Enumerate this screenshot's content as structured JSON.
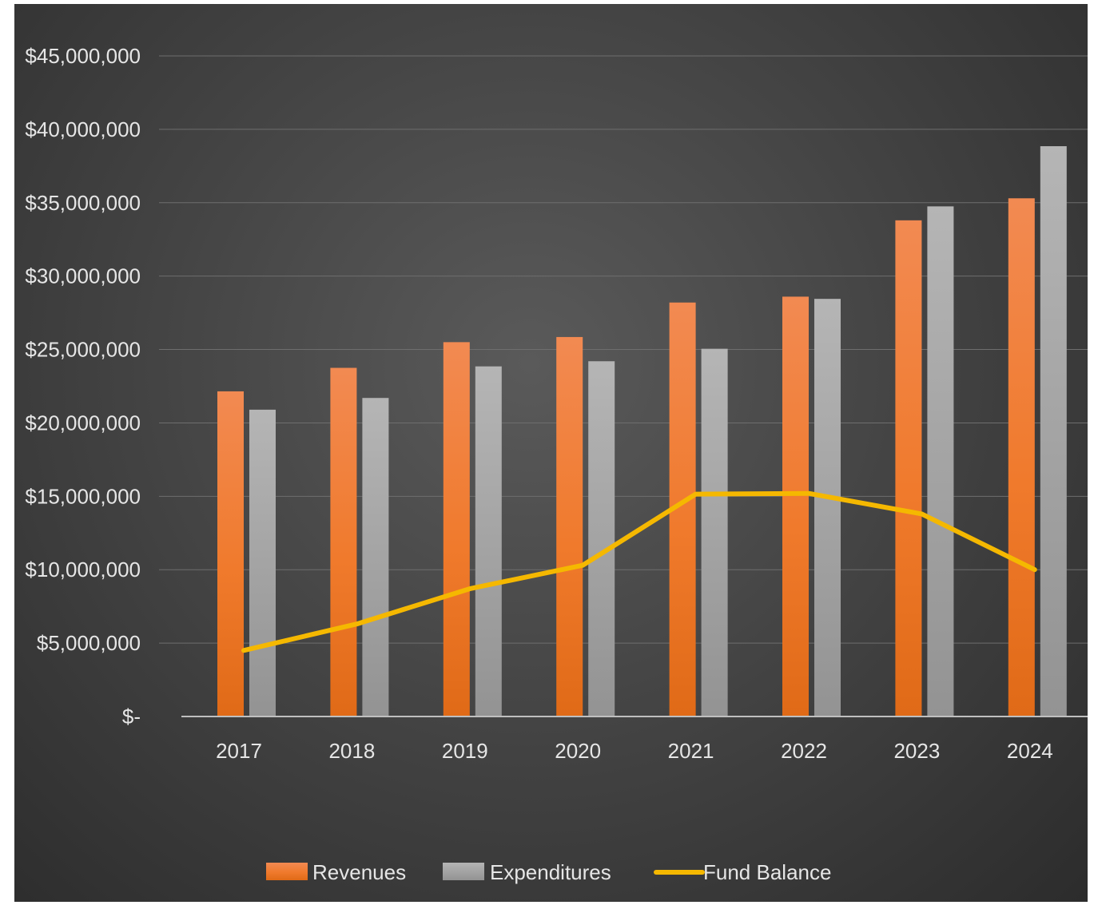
{
  "chart_data": {
    "type": "bar",
    "categories": [
      "2017",
      "2018",
      "2019",
      "2020",
      "2021",
      "2022",
      "2023",
      "2024"
    ],
    "series": [
      {
        "name": "Revenues",
        "type": "bar",
        "color": "#f07a2c",
        "values": [
          22150000,
          23750000,
          25500000,
          25850000,
          28200000,
          28600000,
          33800000,
          35300000
        ]
      },
      {
        "name": "Expenditures",
        "type": "bar",
        "color": "#a8a8a8",
        "values": [
          20900000,
          21700000,
          23850000,
          24200000,
          25050000,
          28450000,
          34750000,
          38850000
        ]
      },
      {
        "name": "Fund Balance",
        "type": "line",
        "color": "#f5b800",
        "values": [
          4500000,
          6300000,
          8700000,
          10300000,
          15150000,
          15200000,
          13800000,
          10000000
        ]
      }
    ],
    "ylim": [
      0,
      45000000
    ],
    "y_ticks": [
      {
        "value": 0,
        "label": "$-"
      },
      {
        "value": 5000000,
        "label": "$5,000,000"
      },
      {
        "value": 10000000,
        "label": "$10,000,000"
      },
      {
        "value": 15000000,
        "label": "$15,000,000"
      },
      {
        "value": 20000000,
        "label": "$20,000,000"
      },
      {
        "value": 25000000,
        "label": "$25,000,000"
      },
      {
        "value": 30000000,
        "label": "$30,000,000"
      },
      {
        "value": 35000000,
        "label": "$35,000,000"
      },
      {
        "value": 40000000,
        "label": "$40,000,000"
      },
      {
        "value": 45000000,
        "label": "$45,000,000"
      }
    ],
    "title": "",
    "xlabel": "",
    "ylabel": "",
    "grid": true,
    "legend_position": "bottom"
  }
}
